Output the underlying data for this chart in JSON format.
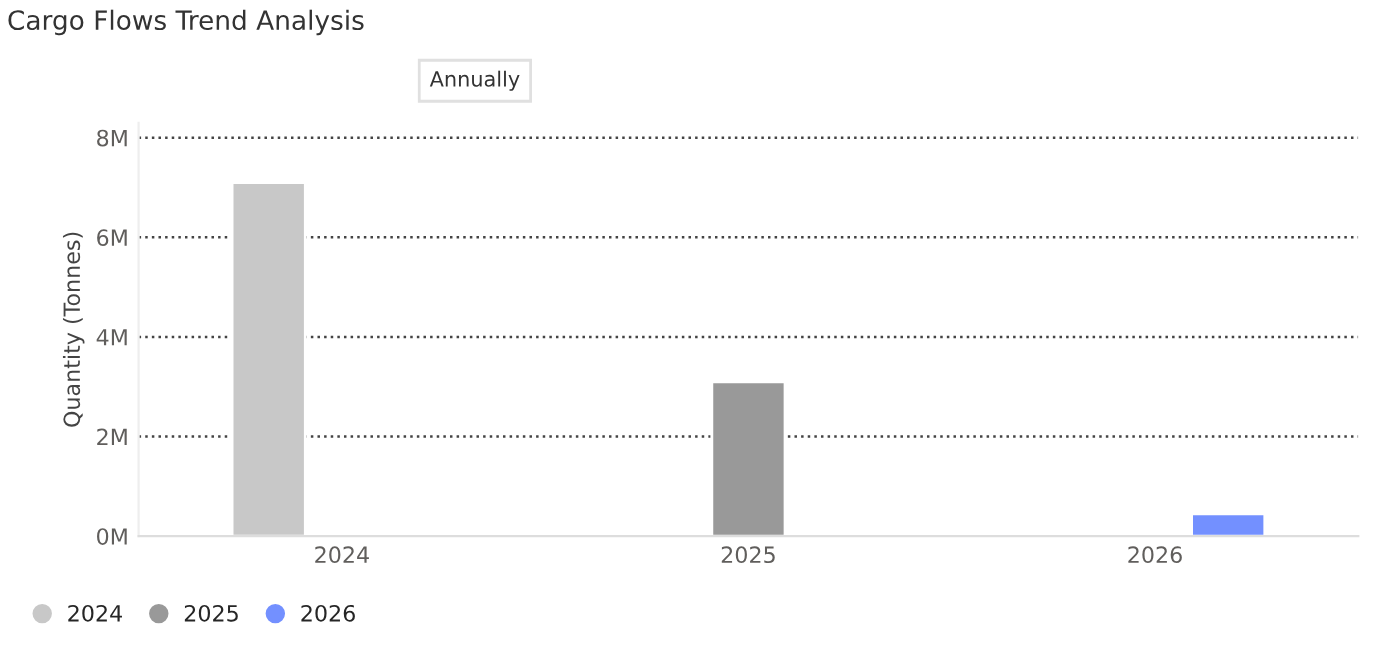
{
  "chart_data": {
    "type": "bar",
    "title": "Cargo Flows Trend Analysis",
    "ylabel": "Quantity (Tonnes)",
    "annotations": [
      "Annually"
    ],
    "categories": [
      "2024",
      "2025",
      "2026"
    ],
    "series": [
      {
        "name": "2024",
        "color": "#c8c8c8",
        "values": [
          7100000,
          null,
          null
        ]
      },
      {
        "name": "2025",
        "color": "#999999",
        "values": [
          null,
          3100000,
          null
        ]
      },
      {
        "name": "2026",
        "color": "#7390ff",
        "values": [
          null,
          null,
          450000
        ]
      }
    ],
    "ylim": [
      0,
      8300000
    ],
    "yticks": [
      {
        "value": 0,
        "label": "0M"
      },
      {
        "value": 2000000,
        "label": "2M"
      },
      {
        "value": 4000000,
        "label": "4M"
      },
      {
        "value": 6000000,
        "label": "6M"
      },
      {
        "value": 8000000,
        "label": "8M"
      }
    ],
    "grid": "y",
    "legend": "bottom left"
  }
}
